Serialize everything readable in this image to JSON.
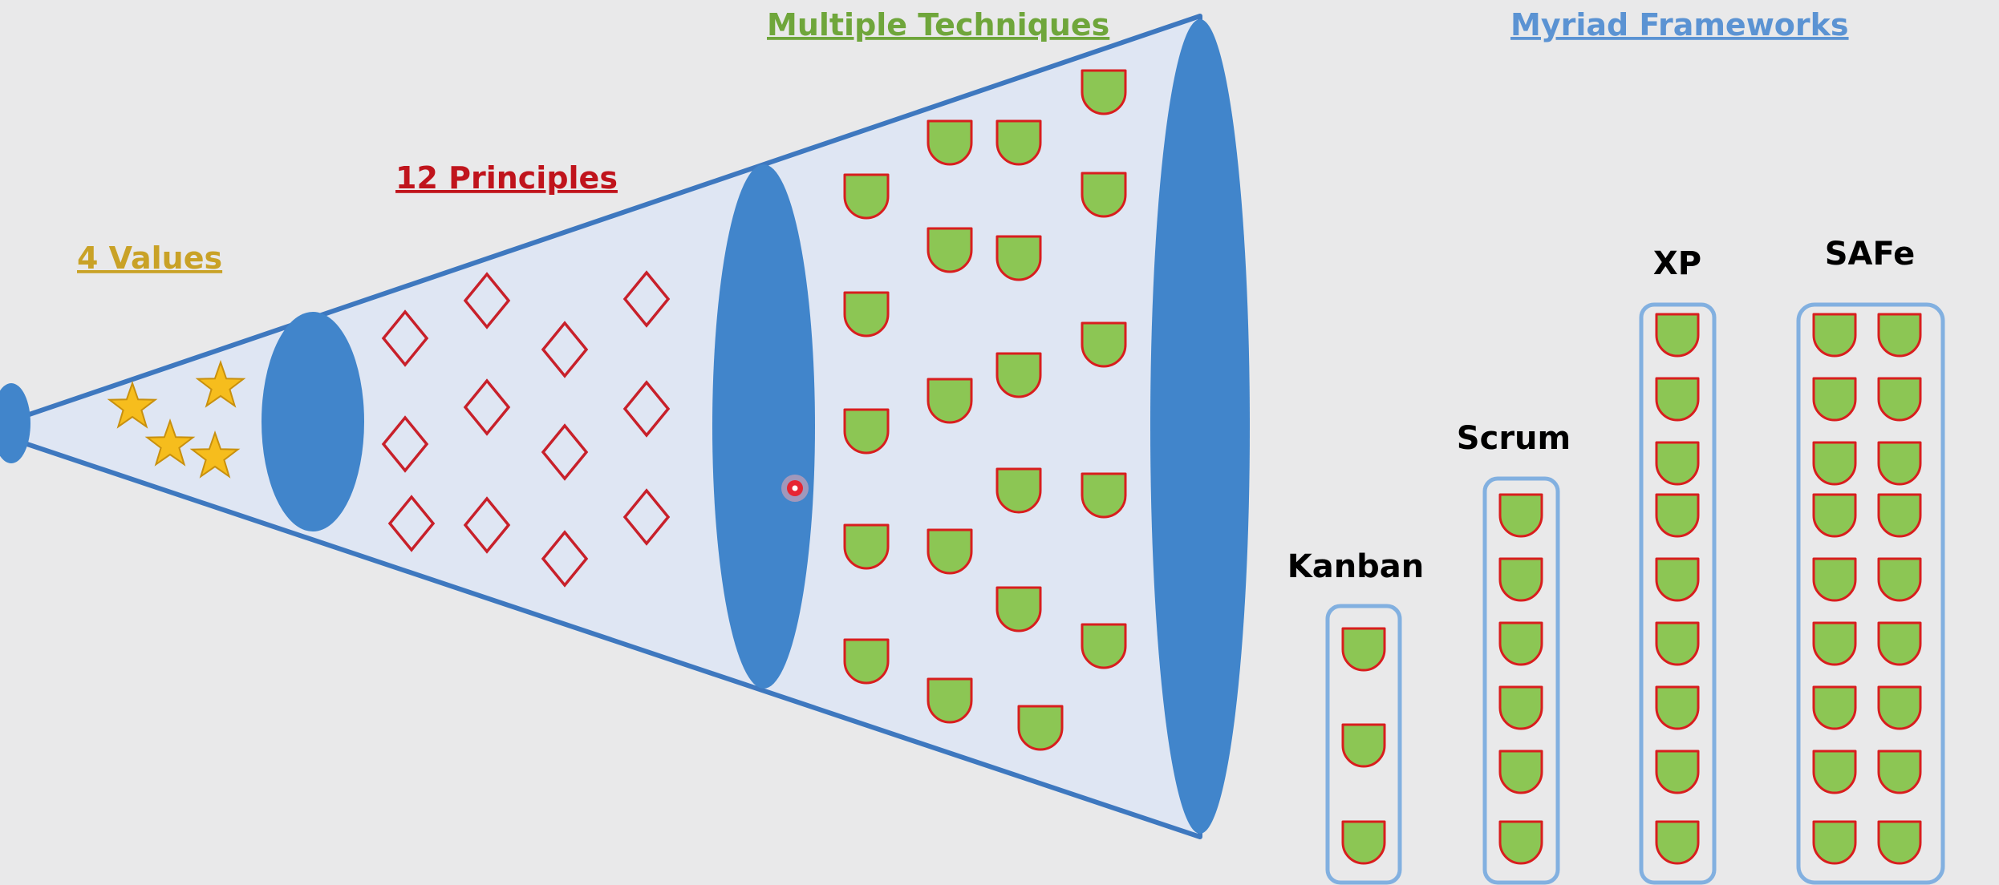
{
  "colors": {
    "background": "#e9e9ea",
    "funnel_fill": "#dfe6f3",
    "funnel_stroke": "#3e78bf",
    "ellipse_fill": "#4185cb",
    "values_color": "#c9a227",
    "principles_color": "#c0141c",
    "techniques_color": "#6fa63b",
    "frameworks_color": "#5b93d3",
    "star_fill": "#f6bd1d",
    "star_stroke": "#c8900e",
    "diamond_stroke": "#c8202a",
    "drop_fill": "#8cc654",
    "drop_stroke": "#d81e1e",
    "box_stroke": "#82b0e0",
    "pointer": "#e62532"
  },
  "labels": {
    "values": "4 Values",
    "principles": "12 Principles",
    "techniques": "Multiple Techniques",
    "frameworks": "Myriad Frameworks"
  },
  "frameworks": [
    {
      "name": "Kanban",
      "count": 3
    },
    {
      "name": "Scrum",
      "count": 6
    },
    {
      "name": "XP",
      "count": 9
    },
    {
      "name": "SAFe",
      "count": 18
    }
  ],
  "icons": {
    "values_item": "star-icon",
    "principles_item": "diamond-icon",
    "technique_item": "teardrop-icon",
    "pointer": "laser-pointer-icon"
  }
}
